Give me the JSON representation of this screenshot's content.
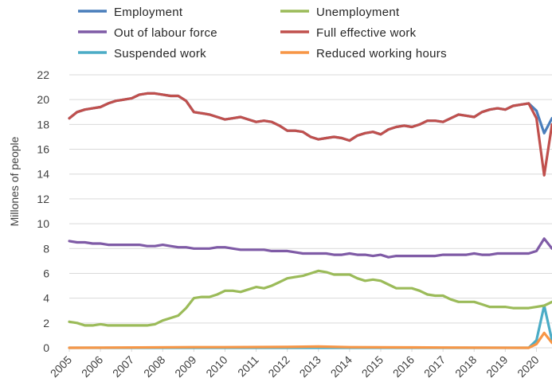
{
  "chart_data": {
    "type": "line",
    "title": "",
    "xlabel": "",
    "ylabel": "Millones of people",
    "ylim": [
      0,
      22
    ],
    "yticks": [
      0,
      2,
      4,
      6,
      8,
      10,
      12,
      14,
      16,
      18,
      20,
      22
    ],
    "xlim": [
      2005,
      2020.5
    ],
    "xticks": [
      "2005",
      "2006",
      "2007",
      "2008",
      "2009",
      "2010",
      "2011",
      "2012",
      "2013",
      "2014",
      "2015",
      "2016",
      "2017",
      "2018",
      "2019",
      "2020"
    ],
    "grid": "horizontal",
    "legend_position": "top",
    "series": [
      {
        "name": "Employment",
        "color": "#4a7ebb",
        "x": [
          2005.0,
          2005.25,
          2005.5,
          2005.75,
          2006.0,
          2006.25,
          2006.5,
          2006.75,
          2007.0,
          2007.25,
          2007.5,
          2007.75,
          2008.0,
          2008.25,
          2008.5,
          2008.75,
          2009.0,
          2009.25,
          2009.5,
          2009.75,
          2010.0,
          2010.25,
          2010.5,
          2010.75,
          2011.0,
          2011.25,
          2011.5,
          2011.75,
          2012.0,
          2012.25,
          2012.5,
          2012.75,
          2013.0,
          2013.25,
          2013.5,
          2013.75,
          2014.0,
          2014.25,
          2014.5,
          2014.75,
          2015.0,
          2015.25,
          2015.5,
          2015.75,
          2016.0,
          2016.25,
          2016.5,
          2016.75,
          2017.0,
          2017.25,
          2017.5,
          2017.75,
          2018.0,
          2018.25,
          2018.5,
          2018.75,
          2019.0,
          2019.25,
          2019.5,
          2019.75,
          2020.0,
          2020.25,
          2020.5
        ],
        "y": [
          18.5,
          19.0,
          19.2,
          19.3,
          19.4,
          19.7,
          19.9,
          20.0,
          20.1,
          20.4,
          20.5,
          20.5,
          20.4,
          20.3,
          20.3,
          19.9,
          19.0,
          18.9,
          18.8,
          18.6,
          18.4,
          18.5,
          18.6,
          18.4,
          18.2,
          18.3,
          18.2,
          17.9,
          17.5,
          17.5,
          17.4,
          17.0,
          16.8,
          16.9,
          17.0,
          16.9,
          16.7,
          17.1,
          17.3,
          17.4,
          17.2,
          17.6,
          17.8,
          17.9,
          17.8,
          18.0,
          18.3,
          18.3,
          18.2,
          18.5,
          18.8,
          18.7,
          18.6,
          19.0,
          19.2,
          19.3,
          19.2,
          19.5,
          19.6,
          19.7,
          19.1,
          17.3,
          18.5
        ]
      },
      {
        "name": "Out of labour force",
        "color": "#7f5ba6",
        "x": [
          2005.0,
          2005.25,
          2005.5,
          2005.75,
          2006.0,
          2006.25,
          2006.5,
          2006.75,
          2007.0,
          2007.25,
          2007.5,
          2007.75,
          2008.0,
          2008.25,
          2008.5,
          2008.75,
          2009.0,
          2009.25,
          2009.5,
          2009.75,
          2010.0,
          2010.25,
          2010.5,
          2010.75,
          2011.0,
          2011.25,
          2011.5,
          2011.75,
          2012.0,
          2012.25,
          2012.5,
          2012.75,
          2013.0,
          2013.25,
          2013.5,
          2013.75,
          2014.0,
          2014.25,
          2014.5,
          2014.75,
          2015.0,
          2015.25,
          2015.5,
          2015.75,
          2016.0,
          2016.25,
          2016.5,
          2016.75,
          2017.0,
          2017.25,
          2017.5,
          2017.75,
          2018.0,
          2018.25,
          2018.5,
          2018.75,
          2019.0,
          2019.25,
          2019.5,
          2019.75,
          2020.0,
          2020.25,
          2020.5
        ],
        "y": [
          8.6,
          8.5,
          8.5,
          8.4,
          8.4,
          8.3,
          8.3,
          8.3,
          8.3,
          8.3,
          8.2,
          8.2,
          8.3,
          8.2,
          8.1,
          8.1,
          8.0,
          8.0,
          8.0,
          8.1,
          8.1,
          8.0,
          7.9,
          7.9,
          7.9,
          7.9,
          7.8,
          7.8,
          7.8,
          7.7,
          7.6,
          7.6,
          7.6,
          7.6,
          7.5,
          7.5,
          7.6,
          7.5,
          7.5,
          7.4,
          7.5,
          7.3,
          7.4,
          7.4,
          7.4,
          7.4,
          7.4,
          7.4,
          7.5,
          7.5,
          7.5,
          7.5,
          7.6,
          7.5,
          7.5,
          7.6,
          7.6,
          7.6,
          7.6,
          7.6,
          7.8,
          8.8,
          8.0
        ]
      },
      {
        "name": "Suspended work",
        "color": "#4bacc6",
        "x": [
          2005.0,
          2019.75,
          2020.0,
          2020.25,
          2020.5
        ],
        "y": [
          0.0,
          0.0,
          0.6,
          3.4,
          0.6
        ]
      },
      {
        "name": "Unemployment",
        "color": "#9bbb59",
        "x": [
          2005.0,
          2005.25,
          2005.5,
          2005.75,
          2006.0,
          2006.25,
          2006.5,
          2006.75,
          2007.0,
          2007.25,
          2007.5,
          2007.75,
          2008.0,
          2008.25,
          2008.5,
          2008.75,
          2009.0,
          2009.25,
          2009.5,
          2009.75,
          2010.0,
          2010.25,
          2010.5,
          2010.75,
          2011.0,
          2011.25,
          2011.5,
          2011.75,
          2012.0,
          2012.25,
          2012.5,
          2012.75,
          2013.0,
          2013.25,
          2013.5,
          2013.75,
          2014.0,
          2014.25,
          2014.5,
          2014.75,
          2015.0,
          2015.25,
          2015.5,
          2015.75,
          2016.0,
          2016.25,
          2016.5,
          2016.75,
          2017.0,
          2017.25,
          2017.5,
          2017.75,
          2018.0,
          2018.25,
          2018.5,
          2018.75,
          2019.0,
          2019.25,
          2019.5,
          2019.75,
          2020.0,
          2020.25,
          2020.5
        ],
        "y": [
          2.1,
          2.0,
          1.8,
          1.8,
          1.9,
          1.8,
          1.8,
          1.8,
          1.8,
          1.8,
          1.8,
          1.9,
          2.2,
          2.4,
          2.6,
          3.2,
          4.0,
          4.1,
          4.1,
          4.3,
          4.6,
          4.6,
          4.5,
          4.7,
          4.9,
          4.8,
          5.0,
          5.3,
          5.6,
          5.7,
          5.8,
          6.0,
          6.2,
          6.1,
          5.9,
          5.9,
          5.9,
          5.6,
          5.4,
          5.5,
          5.4,
          5.1,
          4.8,
          4.8,
          4.8,
          4.6,
          4.3,
          4.2,
          4.2,
          3.9,
          3.7,
          3.7,
          3.7,
          3.5,
          3.3,
          3.3,
          3.3,
          3.2,
          3.2,
          3.2,
          3.3,
          3.4,
          3.7
        ]
      },
      {
        "name": "Full effective work",
        "color": "#c0504d",
        "x": [
          2005.0,
          2005.25,
          2005.5,
          2005.75,
          2006.0,
          2006.25,
          2006.5,
          2006.75,
          2007.0,
          2007.25,
          2007.5,
          2007.75,
          2008.0,
          2008.25,
          2008.5,
          2008.75,
          2009.0,
          2009.25,
          2009.5,
          2009.75,
          2010.0,
          2010.25,
          2010.5,
          2010.75,
          2011.0,
          2011.25,
          2011.5,
          2011.75,
          2012.0,
          2012.25,
          2012.5,
          2012.75,
          2013.0,
          2013.25,
          2013.5,
          2013.75,
          2014.0,
          2014.25,
          2014.5,
          2014.75,
          2015.0,
          2015.25,
          2015.5,
          2015.75,
          2016.0,
          2016.25,
          2016.5,
          2016.75,
          2017.0,
          2017.25,
          2017.5,
          2017.75,
          2018.0,
          2018.25,
          2018.5,
          2018.75,
          2019.0,
          2019.25,
          2019.5,
          2019.75,
          2020.0,
          2020.25,
          2020.5
        ],
        "y": [
          18.5,
          19.0,
          19.2,
          19.3,
          19.4,
          19.7,
          19.9,
          20.0,
          20.1,
          20.4,
          20.5,
          20.5,
          20.4,
          20.3,
          20.3,
          19.9,
          19.0,
          18.9,
          18.8,
          18.6,
          18.4,
          18.5,
          18.6,
          18.4,
          18.2,
          18.3,
          18.2,
          17.9,
          17.5,
          17.5,
          17.4,
          17.0,
          16.8,
          16.9,
          17.0,
          16.9,
          16.7,
          17.1,
          17.3,
          17.4,
          17.2,
          17.6,
          17.8,
          17.9,
          17.8,
          18.0,
          18.3,
          18.3,
          18.2,
          18.5,
          18.8,
          18.7,
          18.6,
          19.0,
          19.2,
          19.3,
          19.2,
          19.5,
          19.6,
          19.7,
          18.5,
          13.9,
          18.0
        ]
      },
      {
        "name": "Reduced working hours",
        "color": "#f79646",
        "x": [
          2005.0,
          2009.0,
          2010.0,
          2012.0,
          2013.0,
          2014.0,
          2016.0,
          2017.0,
          2019.75,
          2020.0,
          2020.25,
          2020.5
        ],
        "y": [
          0.0,
          0.05,
          0.05,
          0.07,
          0.1,
          0.05,
          0.03,
          0.02,
          0.0,
          0.3,
          1.2,
          0.4
        ]
      }
    ]
  }
}
